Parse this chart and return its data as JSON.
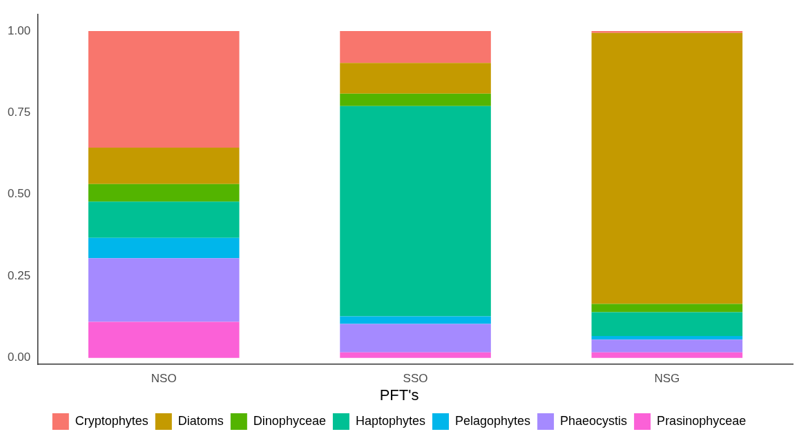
{
  "chart_data": {
    "type": "bar",
    "stacked": true,
    "categories": [
      "NSO",
      "SSO",
      "NSG"
    ],
    "series": [
      {
        "name": "Prasinophyceae",
        "color": "#fb61d7",
        "values": [
          0.11,
          0.017,
          0.017
        ]
      },
      {
        "name": "Phaeocystis",
        "color": "#a58aff",
        "values": [
          0.195,
          0.087,
          0.039
        ]
      },
      {
        "name": "Pelagophytes",
        "color": "#00b6eb",
        "values": [
          0.062,
          0.023,
          0.011
        ]
      },
      {
        "name": "Haptophytes",
        "color": "#00c094",
        "values": [
          0.111,
          0.643,
          0.073
        ]
      },
      {
        "name": "Dinophyceae",
        "color": "#53b400",
        "values": [
          0.054,
          0.038,
          0.025
        ]
      },
      {
        "name": "Diatoms",
        "color": "#c49a00",
        "values": [
          0.111,
          0.094,
          0.829
        ]
      },
      {
        "name": "Cryptophytes",
        "color": "#f8766d",
        "values": [
          0.357,
          0.098,
          0.006
        ]
      }
    ],
    "ylim": [
      -0.02,
      1.05
    ],
    "yticks": [
      {
        "value": 0,
        "label": "0.00"
      },
      {
        "value": 0.25,
        "label": "0.25"
      },
      {
        "value": 0.5,
        "label": "0.50"
      },
      {
        "value": 0.75,
        "label": "0.75"
      },
      {
        "value": 1,
        "label": "1.00"
      }
    ],
    "grid": false,
    "legend": "bottom",
    "legend_title": "PFT's"
  }
}
